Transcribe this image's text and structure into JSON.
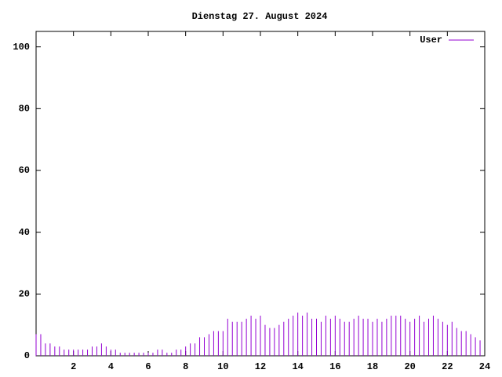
{
  "chart_data": {
    "type": "impulse",
    "title": "Dienstag 27. August 2024",
    "x": [
      0,
      0.25,
      0.5,
      0.75,
      1,
      1.25,
      1.5,
      1.75,
      2,
      2.25,
      2.5,
      2.75,
      3,
      3.25,
      3.5,
      3.75,
      4,
      4.25,
      4.5,
      4.75,
      5,
      5.25,
      5.5,
      5.75,
      6,
      6.25,
      6.5,
      6.75,
      7,
      7.25,
      7.5,
      7.75,
      8,
      8.25,
      8.5,
      8.75,
      9,
      9.25,
      9.5,
      9.75,
      10,
      10.25,
      10.5,
      10.75,
      11,
      11.25,
      11.5,
      11.75,
      12,
      12.25,
      12.5,
      12.75,
      13,
      13.25,
      13.5,
      13.75,
      14,
      14.25,
      14.5,
      14.75,
      15,
      15.25,
      15.5,
      15.75,
      16,
      16.25,
      16.5,
      16.75,
      17,
      17.25,
      17.5,
      17.75,
      18,
      18.25,
      18.5,
      18.75,
      19,
      19.25,
      19.5,
      19.75,
      20,
      20.25,
      20.5,
      20.75,
      21,
      21.25,
      21.5,
      21.75,
      22,
      22.25,
      22.5,
      22.75,
      23,
      23.25,
      23.5,
      23.75
    ],
    "series": [
      {
        "name": "User",
        "color": "#9400d3",
        "values": [
          7,
          7,
          4,
          4,
          3,
          3,
          2,
          2,
          2,
          2,
          2,
          2,
          3,
          3,
          4,
          3,
          2,
          2,
          1,
          1,
          1,
          1,
          1,
          1,
          1,
          1,
          2,
          2,
          1,
          1,
          2,
          2,
          3,
          4,
          4,
          6,
          6,
          7,
          8,
          8,
          8,
          12,
          11,
          11,
          11,
          12,
          13,
          12,
          13,
          10,
          9,
          9,
          10,
          11,
          12,
          13,
          14,
          13,
          14,
          12,
          12,
          11,
          13,
          12,
          13,
          12,
          11,
          11,
          12,
          13,
          12,
          12,
          11,
          12,
          11,
          12,
          13,
          13,
          13,
          12,
          11,
          12,
          13,
          11,
          12,
          13,
          12,
          11,
          10,
          11,
          9,
          8,
          8,
          7,
          6,
          5
        ]
      }
    ],
    "xlim": [
      0,
      24
    ],
    "xticks": [
      2,
      4,
      6,
      8,
      10,
      12,
      14,
      16,
      18,
      20,
      22,
      24
    ],
    "ylim": [
      0,
      105
    ],
    "yticks": [
      0,
      20,
      40,
      60,
      80,
      100
    ],
    "grid": false,
    "legend": "top-right"
  }
}
